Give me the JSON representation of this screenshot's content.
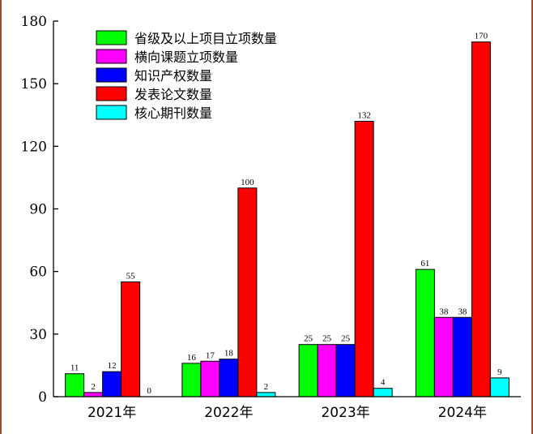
{
  "chart_data": {
    "type": "bar",
    "title": "",
    "xlabel": "",
    "ylabel": "",
    "categories": [
      "2021年",
      "2022年",
      "2023年",
      "2024年"
    ],
    "ylim": [
      0,
      180
    ],
    "yticks": [
      "0",
      "30",
      "60",
      "90",
      "120",
      "150",
      "180"
    ],
    "grid": false,
    "legend_position": "top-left",
    "series": [
      {
        "name": "省级及以上项目立项数量",
        "color": "#00ff00",
        "values": [
          11,
          16,
          25,
          61
        ]
      },
      {
        "name": "横向课题立项数量",
        "color": "#ff00ff",
        "values": [
          2,
          17,
          25,
          38
        ]
      },
      {
        "name": "知识产权数量",
        "color": "#0000ff",
        "values": [
          12,
          18,
          25,
          38
        ]
      },
      {
        "name": "发表论文数量",
        "color": "#ff0000",
        "values": [
          55,
          100,
          132,
          170
        ]
      },
      {
        "name": "核心期刊数量",
        "color": "#00ffff",
        "values": [
          0,
          2,
          4,
          9
        ]
      }
    ]
  }
}
